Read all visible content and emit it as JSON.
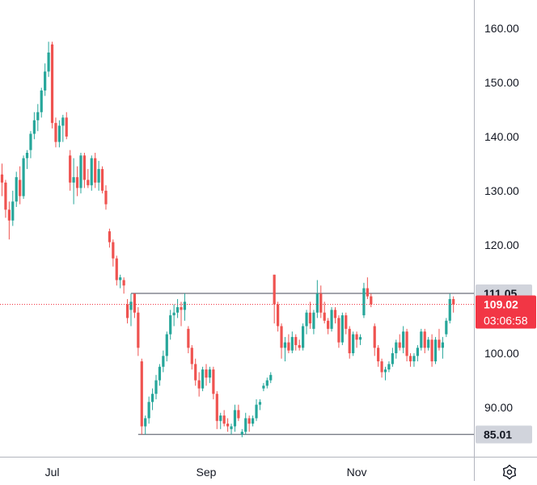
{
  "chart_data": {
    "type": "candlestick",
    "title": "",
    "xlabel": "",
    "ylabel": "",
    "ylim": [
      80.9,
      165.2
    ],
    "y_ticks": [
      160,
      150,
      140,
      130,
      120,
      110,
      100,
      90
    ],
    "y_tick_labels": [
      "160.00",
      "150.00",
      "140.00",
      "130.00",
      "120.00",
      "110.00",
      "100.00",
      "90.00"
    ],
    "x_tick_labels": [
      {
        "label": "Jul",
        "index": 14
      },
      {
        "label": "Sep",
        "index": 57
      },
      {
        "label": "Nov",
        "index": 99
      }
    ],
    "grid": false,
    "up_color": "#26a69a",
    "down_color": "#ef5350",
    "levels": [
      {
        "name": "resistance",
        "value": 111.05,
        "label": "111.05",
        "start_index": 36
      },
      {
        "name": "support",
        "value": 85.01,
        "label": "85.01",
        "start_index": 38
      }
    ],
    "last_price": {
      "value": 109.02,
      "label": "109.02",
      "countdown": "03:06:58",
      "color": "#f23645"
    },
    "candles": [
      [
        133.0,
        135.0,
        129.0,
        131.5
      ],
      [
        131.5,
        132.0,
        125.0,
        126.5
      ],
      [
        126.5,
        128.0,
        121.0,
        124.5
      ],
      [
        124.5,
        130.0,
        123.5,
        128.0
      ],
      [
        128.0,
        133.5,
        127.0,
        132.5
      ],
      [
        132.0,
        134.5,
        127.5,
        129.0
      ],
      [
        129.0,
        136.5,
        128.5,
        136.0
      ],
      [
        136.0,
        137.5,
        134.0,
        137.0
      ],
      [
        137.5,
        141.0,
        136.0,
        140.5
      ],
      [
        140.5,
        144.5,
        139.5,
        143.0
      ],
      [
        143.0,
        146.0,
        141.0,
        144.5
      ],
      [
        144.5,
        149.0,
        143.5,
        148.5
      ],
      [
        148.5,
        153.5,
        147.5,
        152.0
      ],
      [
        152.0,
        157.5,
        151.0,
        155.5
      ],
      [
        157.0,
        157.5,
        141.5,
        142.5
      ],
      [
        142.5,
        143.5,
        138.0,
        139.0
      ],
      [
        139.0,
        143.0,
        138.0,
        142.0
      ],
      [
        142.0,
        144.0,
        139.0,
        143.5
      ],
      [
        143.5,
        144.5,
        139.5,
        140.0
      ],
      [
        136.5,
        137.5,
        130.0,
        131.5
      ],
      [
        131.5,
        136.0,
        127.5,
        132.5
      ],
      [
        132.5,
        134.5,
        129.0,
        130.5
      ],
      [
        130.5,
        137.0,
        129.5,
        136.5
      ],
      [
        136.5,
        137.0,
        130.5,
        132.0
      ],
      [
        132.0,
        134.0,
        130.5,
        131.0
      ],
      [
        131.0,
        136.5,
        130.0,
        136.0
      ],
      [
        136.0,
        137.0,
        130.5,
        131.5
      ],
      [
        131.5,
        135.5,
        130.0,
        134.0
      ],
      [
        134.0,
        134.5,
        129.5,
        130.0
      ],
      [
        130.0,
        131.0,
        126.5,
        127.5
      ],
      [
        122.5,
        123.0,
        119.5,
        120.5
      ],
      [
        120.5,
        121.0,
        116.0,
        117.5
      ],
      [
        117.5,
        118.0,
        112.5,
        113.5
      ],
      [
        113.5,
        114.5,
        112.0,
        114.0
      ],
      [
        113.5,
        114.0,
        111.0,
        112.5
      ],
      [
        109.0,
        110.0,
        105.5,
        106.5
      ],
      [
        108.0,
        111.0,
        105.0,
        109.5
      ],
      [
        111.0,
        111.0,
        106.5,
        107.5
      ],
      [
        107.5,
        108.5,
        99.5,
        101.0
      ],
      [
        98.5,
        99.0,
        85.0,
        86.5
      ],
      [
        86.5,
        88.5,
        85.01,
        88.0
      ],
      [
        88.0,
        92.0,
        87.0,
        91.0
      ],
      [
        91.0,
        93.5,
        89.5,
        92.5
      ],
      [
        92.5,
        96.0,
        91.5,
        95.0
      ],
      [
        95.0,
        98.0,
        94.0,
        97.5
      ],
      [
        97.5,
        100.5,
        96.5,
        99.5
      ],
      [
        99.5,
        104.0,
        98.5,
        103.5
      ],
      [
        103.5,
        108.0,
        102.5,
        107.0
      ],
      [
        107.0,
        109.0,
        105.0,
        107.5
      ],
      [
        107.5,
        110.0,
        106.5,
        108.5
      ],
      [
        108.5,
        109.5,
        105.0,
        108.0
      ],
      [
        108.0,
        111.05,
        106.0,
        109.5
      ],
      [
        104.5,
        105.0,
        100.0,
        101.0
      ],
      [
        101.0,
        101.5,
        97.0,
        98.0
      ],
      [
        98.0,
        99.0,
        94.0,
        95.0
      ],
      [
        95.0,
        96.5,
        92.0,
        93.5
      ],
      [
        93.5,
        97.5,
        93.0,
        97.0
      ],
      [
        97.0,
        98.0,
        94.0,
        95.5
      ],
      [
        95.5,
        97.5,
        94.5,
        97.0
      ],
      [
        97.0,
        97.5,
        91.5,
        92.5
      ],
      [
        92.5,
        93.0,
        86.0,
        87.5
      ],
      [
        87.5,
        89.0,
        86.0,
        88.5
      ],
      [
        88.5,
        89.5,
        86.5,
        87.0
      ],
      [
        87.0,
        88.0,
        85.5,
        86.5
      ],
      [
        86.0,
        87.0,
        85.0,
        86.5
      ],
      [
        86.5,
        90.5,
        85.5,
        89.5
      ],
      [
        89.5,
        90.5,
        87.5,
        88.0
      ],
      [
        85.0,
        86.0,
        84.5,
        85.5
      ],
      [
        85.5,
        89.0,
        85.0,
        88.0
      ],
      [
        88.0,
        88.5,
        85.5,
        87.0
      ],
      [
        87.0,
        88.5,
        86.5,
        88.0
      ],
      [
        88.0,
        91.5,
        87.5,
        90.5
      ],
      [
        90.5,
        91.5,
        89.5,
        91.0
      ],
      [
        93.5,
        94.5,
        93.0,
        94.0
      ],
      [
        94.0,
        95.5,
        93.5,
        95.0
      ],
      [
        95.0,
        96.5,
        94.5,
        96.0
      ],
      [
        114.5,
        114.5,
        105.5,
        109.0
      ],
      [
        109.0,
        109.5,
        104.0,
        105.0
      ],
      [
        105.0,
        105.5,
        99.0,
        101.0
      ],
      [
        101.0,
        103.0,
        98.5,
        102.0
      ],
      [
        102.0,
        103.5,
        100.0,
        100.5
      ],
      [
        100.5,
        104.0,
        100.0,
        103.0
      ],
      [
        103.0,
        103.5,
        100.5,
        101.5
      ],
      [
        101.5,
        102.5,
        100.5,
        101.0
      ],
      [
        101.0,
        105.5,
        100.5,
        105.0
      ],
      [
        105.0,
        108.0,
        103.5,
        107.5
      ],
      [
        107.5,
        109.5,
        104.5,
        105.5
      ],
      [
        104.5,
        108.0,
        103.5,
        107.5
      ],
      [
        107.5,
        113.5,
        106.5,
        111.0
      ],
      [
        111.0,
        112.5,
        106.5,
        107.5
      ],
      [
        107.5,
        109.5,
        105.5,
        106.0
      ],
      [
        106.0,
        106.5,
        103.5,
        104.5
      ],
      [
        104.5,
        108.5,
        104.0,
        108.0
      ],
      [
        108.0,
        108.5,
        105.5,
        106.5
      ],
      [
        106.5,
        107.0,
        101.0,
        102.0
      ],
      [
        102.0,
        107.5,
        101.5,
        107.0
      ],
      [
        107.0,
        107.5,
        103.5,
        104.5
      ],
      [
        104.5,
        105.0,
        99.0,
        100.0
      ],
      [
        100.0,
        104.0,
        99.5,
        103.5
      ],
      [
        103.5,
        104.0,
        101.0,
        102.5
      ],
      [
        102.5,
        103.5,
        101.5,
        103.0
      ],
      [
        107.0,
        113.0,
        106.5,
        112.0
      ],
      [
        112.0,
        114.0,
        110.0,
        110.5
      ],
      [
        110.5,
        111.0,
        108.5,
        109.0
      ],
      [
        105.0,
        105.5,
        99.5,
        101.0
      ],
      [
        101.0,
        101.5,
        97.5,
        98.5
      ],
      [
        98.5,
        99.0,
        95.5,
        96.5
      ],
      [
        96.5,
        97.5,
        95.0,
        97.0
      ],
      [
        97.0,
        98.5,
        96.5,
        98.0
      ],
      [
        98.0,
        101.0,
        97.5,
        100.0
      ],
      [
        100.0,
        102.5,
        99.0,
        102.0
      ],
      [
        102.0,
        103.5,
        100.5,
        101.0
      ],
      [
        101.0,
        105.0,
        100.0,
        104.0
      ],
      [
        104.0,
        104.5,
        98.5,
        99.5
      ],
      [
        99.5,
        100.0,
        97.5,
        98.5
      ],
      [
        98.5,
        100.0,
        97.5,
        99.5
      ],
      [
        99.5,
        101.5,
        98.5,
        101.0
      ],
      [
        101.0,
        104.5,
        100.5,
        104.0
      ],
      [
        104.0,
        104.5,
        100.0,
        101.0
      ],
      [
        101.0,
        103.0,
        100.5,
        102.5
      ],
      [
        102.5,
        103.5,
        97.5,
        98.5
      ],
      [
        98.5,
        103.0,
        98.0,
        102.5
      ],
      [
        102.5,
        104.5,
        100.5,
        101.0
      ],
      [
        101.0,
        103.0,
        99.0,
        102.0
      ],
      [
        103.5,
        106.5,
        103.0,
        106.0
      ],
      [
        106.0,
        111.0,
        105.5,
        110.0
      ],
      [
        110.0,
        110.5,
        107.5,
        109.02
      ]
    ]
  },
  "ui": {
    "settings_icon": "gear-icon",
    "background": "#ffffff",
    "axis_color": "#b2b5be",
    "level_line_color": "#787b86",
    "level_badge_color": "#d1d4dc",
    "last_price_line_color": "#f23645"
  }
}
